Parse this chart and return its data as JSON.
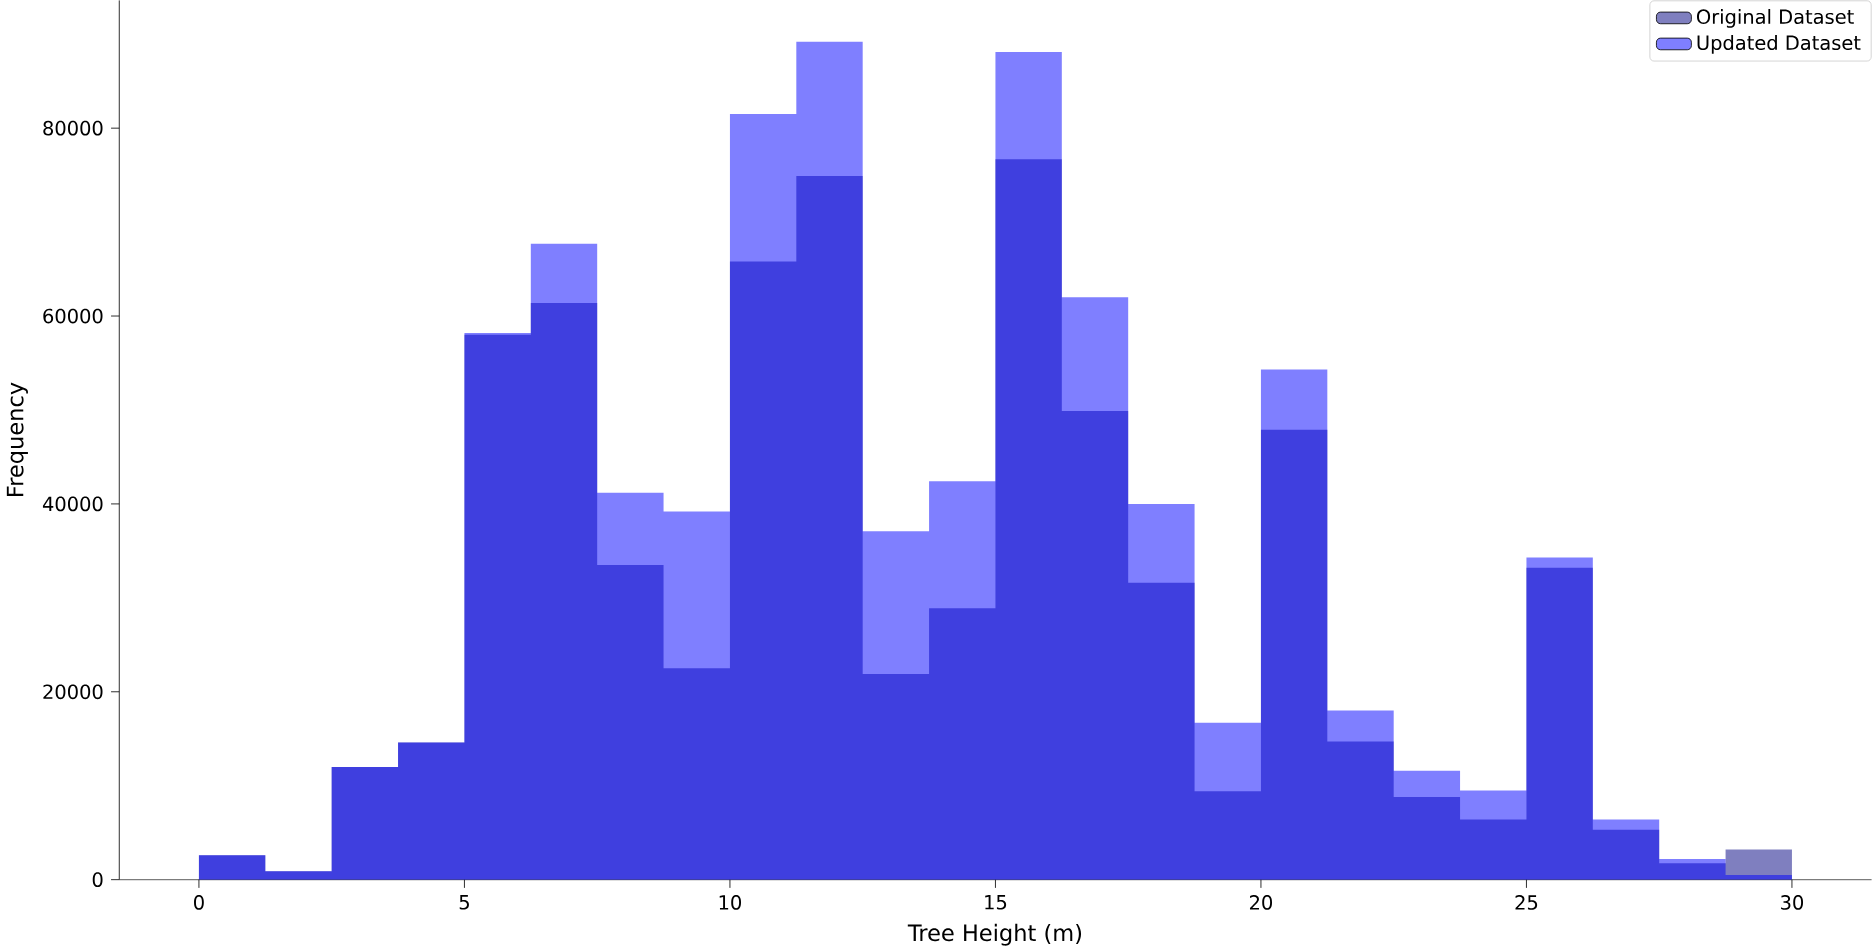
{
  "chart_data": {
    "type": "histogram",
    "xlabel": "Tree Height (m)",
    "ylabel": "Frequency",
    "bins": [
      0,
      1.25,
      2.5,
      3.75,
      5,
      6.25,
      7.5,
      8.75,
      10,
      11.25,
      12.5,
      13.75,
      15,
      16.25,
      17.5,
      18.75,
      20,
      21.25,
      22.5,
      23.75,
      25,
      26.25,
      27.5,
      28.75,
      30
    ],
    "series": [
      {
        "name": "Original Dataset",
        "color": "#000080",
        "values": [
          2600,
          900,
          12000,
          14600,
          58000,
          61400,
          33500,
          22500,
          65800,
          74900,
          21900,
          28900,
          76700,
          49900,
          31600,
          9400,
          47900,
          14700,
          8800,
          6400,
          33200,
          5300,
          1750,
          3200
        ]
      },
      {
        "name": "Updated Dataset",
        "color": "#0000ff",
        "values": [
          2600,
          900,
          12000,
          14600,
          58200,
          67700,
          41200,
          39200,
          81500,
          89200,
          37100,
          42400,
          88100,
          62000,
          40000,
          16700,
          54300,
          18000,
          11600,
          9500,
          34300,
          6400,
          2200,
          500
        ]
      }
    ],
    "xlim": [
      -1.5,
      31.5
    ],
    "ylim": [
      0,
      93600
    ],
    "xticks": [
      0,
      5,
      10,
      15,
      20,
      25,
      30
    ],
    "yticks": [
      0,
      20000,
      40000,
      60000,
      80000
    ],
    "legend": "top right",
    "grid": false
  }
}
